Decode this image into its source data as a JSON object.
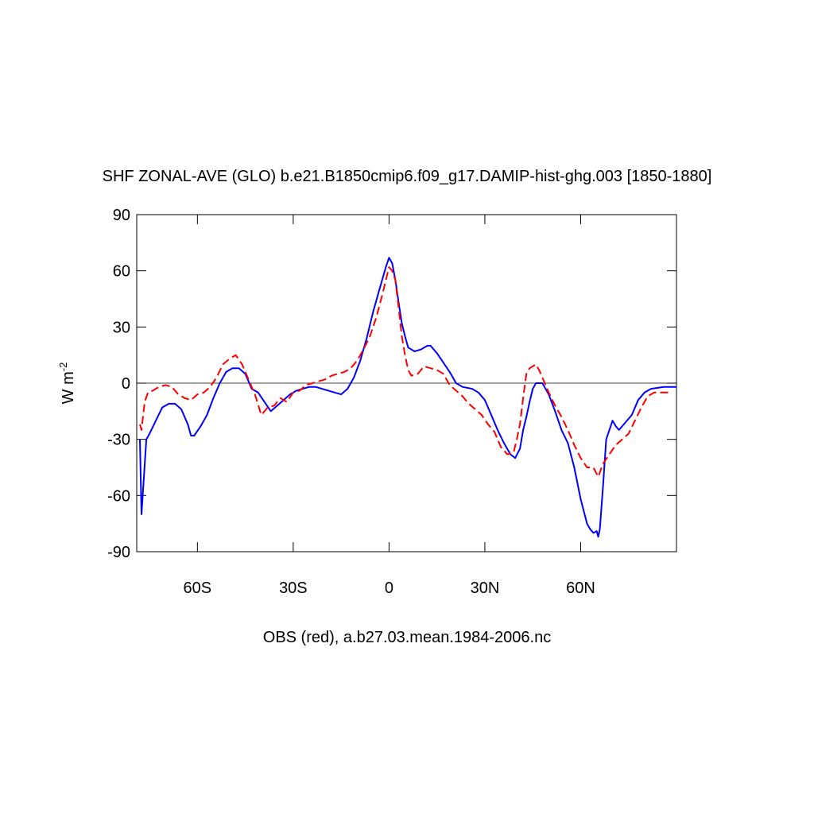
{
  "chart_data": {
    "type": "line",
    "title": "SHF ZONAL-AVE (GLO) b.e21.B1850cmip6.f09_g17.DAMIP-hist-ghg.003 [1850-1880]",
    "xlabel": "OBS (red), a.b27.03.mean.1984-2006.nc",
    "ylabel": {
      "base": "W m",
      "superscript": "-2"
    },
    "xlim": [
      -79,
      90
    ],
    "ylim": [
      -90,
      90
    ],
    "xticks": [
      {
        "value": -60,
        "label": "60S"
      },
      {
        "value": -30,
        "label": "30S"
      },
      {
        "value": 0,
        "label": "0"
      },
      {
        "value": 30,
        "label": "30N"
      },
      {
        "value": 60,
        "label": "60N"
      }
    ],
    "yticks": [
      -90,
      -60,
      -30,
      0,
      30,
      60,
      90
    ],
    "reference_line": 0,
    "series": [
      {
        "color": "#0000ff",
        "dashed": false,
        "x": [
          -78,
          -77.5,
          -76,
          -75,
          -73,
          -71,
          -69,
          -67,
          -65,
          -63,
          -62,
          -61,
          -59,
          -57,
          -55,
          -53,
          -51,
          -49,
          -47,
          -45,
          -43,
          -41,
          -39,
          -37,
          -35,
          -33,
          -31,
          -29,
          -27,
          -25,
          -23,
          -21,
          -19,
          -17,
          -15,
          -13,
          -11,
          -9,
          -7,
          -5,
          -3,
          -1,
          0,
          1,
          2,
          3,
          4,
          5,
          6,
          8,
          10,
          12,
          13,
          15,
          17,
          19,
          21,
          23,
          26,
          28,
          30,
          32,
          34,
          36,
          38,
          39.5,
          41,
          42,
          43,
          44,
          45,
          46,
          48,
          50,
          52,
          54,
          56,
          58,
          60,
          62,
          63,
          64,
          65,
          65.5,
          66,
          67,
          68,
          70,
          71,
          72,
          74,
          76,
          78,
          80,
          82,
          86,
          90
        ],
        "values": [
          -30,
          -70,
          -30,
          -27,
          -20,
          -13,
          -11,
          -11,
          -14,
          -22,
          -28,
          -28,
          -23,
          -17,
          -8,
          0,
          6,
          8,
          8,
          5,
          -3,
          -5,
          -10,
          -15,
          -12,
          -9,
          -6,
          -4,
          -3,
          -2,
          -2,
          -3,
          -4,
          -5,
          -6,
          -3,
          3,
          12,
          24,
          38,
          50,
          62,
          67,
          64,
          55,
          43,
          32,
          25,
          19,
          17,
          18,
          20,
          20,
          16,
          11,
          6,
          0,
          -2,
          -3,
          -5,
          -9,
          -17,
          -25,
          -32,
          -38,
          -40,
          -35,
          -25,
          -18,
          -10,
          -3,
          0,
          0,
          -6,
          -15,
          -25,
          -32,
          -45,
          -62,
          -75,
          -78,
          -80,
          -79,
          -82,
          -78,
          -55,
          -30,
          -20,
          -23,
          -25,
          -21,
          -17,
          -9,
          -5,
          -3,
          -2,
          -2
        ]
      },
      {
        "color": "#ff0000",
        "dashed": true,
        "x": [
          -78,
          -77.5,
          -76.5,
          -75.5,
          -74,
          -72,
          -70,
          -68,
          -66,
          -64,
          -62,
          -60,
          -58,
          -56,
          -54,
          -52,
          -50,
          -48,
          -46,
          -44,
          -42,
          -40,
          -38,
          -36,
          -34,
          -32,
          -30,
          -28,
          -26,
          -24,
          -22,
          -20,
          -18,
          -16,
          -14,
          -12,
          -10,
          -8,
          -6,
          -4,
          -2,
          0,
          1,
          2,
          3,
          4,
          5,
          6,
          7,
          9,
          11,
          13,
          15,
          17,
          19,
          21,
          23,
          25,
          27,
          29,
          31,
          33,
          35,
          37,
          39,
          40,
          41,
          42,
          43,
          44,
          46,
          47,
          48,
          50,
          52,
          54,
          56,
          58,
          60,
          62,
          64,
          65.5,
          67,
          69,
          71,
          73,
          75,
          77,
          79,
          81,
          83,
          86,
          88
        ],
        "values": [
          -22,
          -25,
          -10,
          -5,
          -4,
          -2,
          -1,
          -2,
          -6,
          -8,
          -9,
          -6,
          -5,
          -2,
          3,
          10,
          13,
          15,
          10,
          2,
          -6,
          -17,
          -13,
          -12,
          -8,
          -10,
          -5,
          -4,
          -1,
          0,
          1,
          2,
          4,
          5,
          6,
          8,
          12,
          18,
          25,
          35,
          48,
          62,
          60,
          55,
          40,
          25,
          15,
          7,
          4,
          5,
          9,
          8,
          7,
          5,
          -1,
          -4,
          -7,
          -11,
          -14,
          -17,
          -22,
          -26,
          -34,
          -38,
          -37,
          -30,
          -22,
          -8,
          5,
          8,
          10,
          7,
          3,
          -5,
          -12,
          -18,
          -25,
          -33,
          -40,
          -45,
          -45,
          -50,
          -43,
          -38,
          -33,
          -30,
          -27,
          -20,
          -13,
          -7,
          -5,
          -5,
          -5
        ]
      }
    ]
  }
}
